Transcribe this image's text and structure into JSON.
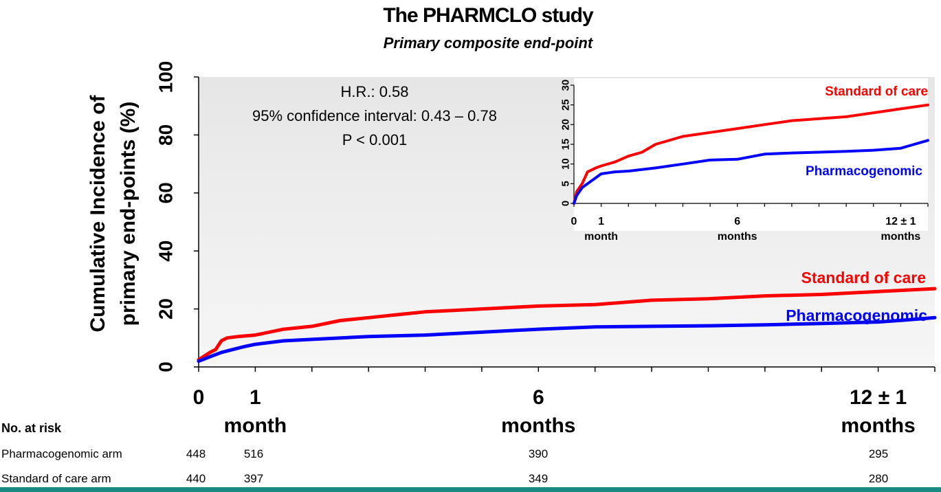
{
  "header": {
    "title": "The PHARMCLO study",
    "subtitle": "Primary composite end-point"
  },
  "chart_data": [
    {
      "type": "line",
      "ylabel": "Cumulative Incidence of primary end-points (%)",
      "xlabel": "",
      "ylim": [
        0,
        100
      ],
      "yticks": [
        0,
        20,
        40,
        60,
        80,
        100
      ],
      "xlim": [
        0,
        13
      ],
      "xticks": [
        {
          "value": 0,
          "label": "0",
          "sublabel": ""
        },
        {
          "value": 1,
          "label": "1",
          "sublabel": "month"
        },
        {
          "value": 6,
          "label": "6",
          "sublabel": "months"
        },
        {
          "value": 12,
          "label": "12 ± 1",
          "sublabel": "months"
        }
      ],
      "grid": false,
      "annotation": [
        "H.R.: 0.58",
        "95% confidence interval: 0.43 – 0.78",
        "P < 0.001"
      ],
      "series": [
        {
          "name": "Standard of care",
          "color": "#ff0000",
          "x": [
            0,
            0.2,
            0.3,
            0.4,
            0.5,
            0.7,
            1,
            1.5,
            2,
            2.5,
            3,
            3.5,
            4,
            5,
            6,
            7,
            8,
            9,
            10,
            11,
            12,
            13
          ],
          "y": [
            2.5,
            5,
            6,
            9,
            10,
            10.5,
            11,
            13,
            14,
            16,
            17,
            18,
            19,
            20,
            21,
            21.5,
            23,
            23.5,
            24.5,
            25,
            26,
            27
          ]
        },
        {
          "name": "Pharmacogenomic",
          "color": "#0000ff",
          "x": [
            0,
            0.2,
            0.4,
            0.6,
            0.8,
            1,
            1.5,
            2,
            3,
            4,
            5,
            6,
            7,
            8,
            9,
            10,
            11,
            12,
            12.5,
            13
          ],
          "y": [
            2,
            3.5,
            5,
            6,
            7,
            7.8,
            9,
            9.5,
            10.5,
            11,
            12,
            13,
            13.8,
            14,
            14.2,
            14.5,
            15,
            15.5,
            16.2,
            17
          ]
        }
      ]
    },
    {
      "type": "line",
      "ylim": [
        0,
        30
      ],
      "yticks": [
        0,
        5,
        10,
        15,
        20,
        25,
        30
      ],
      "xlim": [
        0,
        13
      ],
      "xticks": [
        {
          "value": 0,
          "label": "0",
          "sublabel": ""
        },
        {
          "value": 1,
          "label": "1",
          "sublabel": "month"
        },
        {
          "value": 6,
          "label": "6",
          "sublabel": "months"
        },
        {
          "value": 12,
          "label": "12 ± 1",
          "sublabel": "months"
        }
      ],
      "grid": false,
      "series": [
        {
          "name": "Standard of care",
          "color": "#ff0000",
          "x": [
            0,
            0.1,
            0.3,
            0.5,
            0.8,
            1,
            1.5,
            2,
            2.5,
            3,
            4,
            5,
            6,
            7,
            8,
            9,
            10,
            11,
            12,
            13
          ],
          "y": [
            0,
            3,
            5,
            8,
            9,
            9.5,
            10.5,
            12,
            13,
            15,
            17,
            18,
            19,
            20,
            21,
            21.5,
            22,
            23,
            24,
            25
          ]
        },
        {
          "name": "Pharmacogenomic",
          "color": "#0000ff",
          "x": [
            0,
            0.1,
            0.3,
            0.5,
            0.8,
            1,
            1.5,
            2,
            3,
            4,
            5,
            6,
            7,
            8,
            9,
            10,
            11,
            12,
            12.5,
            13
          ],
          "y": [
            0,
            2,
            4,
            5,
            6.5,
            7.5,
            8,
            8.2,
            9,
            10,
            11,
            11.2,
            12.5,
            12.8,
            13,
            13.2,
            13.5,
            14,
            15,
            16
          ]
        }
      ]
    }
  ],
  "risk_table": {
    "header": "No. at risk",
    "rows": [
      {
        "label": "Pharmacogenomic arm",
        "values": [
          "448",
          "516",
          "390",
          "295"
        ]
      },
      {
        "label": "Standard of care arm",
        "values": [
          "440",
          "397",
          "349",
          "280"
        ]
      }
    ]
  },
  "colors": {
    "standard": "#ff0000",
    "pharmacogenomic": "#0000ff",
    "bottom_bar": "#1a8a82"
  }
}
